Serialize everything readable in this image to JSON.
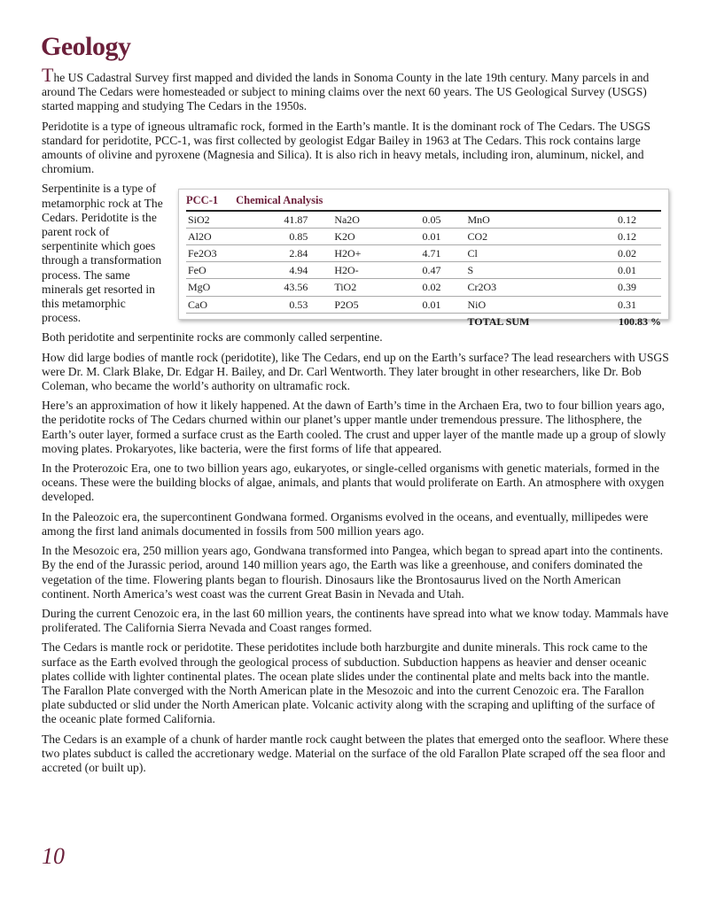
{
  "title": "Geology",
  "intro": {
    "dropcap": "T",
    "rest": "he US Cadastral Survey first mapped and divided the lands in Sonoma County in the late 19th century.  Many parcels in and around The Cedars were homesteaded or subject to mining claims over the next 60 years.  The US Geological Survey (USGS) started mapping and studying The Cedars in the 1950s."
  },
  "p_peridotite": "Peridotite is a type of igneous ultramafic rock, formed in the Earth’s mantle.  It is the dominant rock of The Cedars. The USGS standard for peridotite, PCC-1, was first collected by geologist Edgar Bailey in 1963 at The Cedars. This rock contains large amounts of olivine and pyroxene (Magnesia and Silica). It is also rich in heavy metals, including iron, aluminum, nickel, and chromium.",
  "sidebar": "Serpentinite is a type of metamorphic rock at The Cedars. Peridotite is the parent rock of serpentinite which goes through a transformation process. The same minerals get resorted in this metamorphic process.",
  "table": {
    "label": "PCC-1",
    "heading": "Chemical Analysis",
    "rows": [
      [
        "SiO2",
        "41.87",
        "Na2O",
        "0.05",
        "MnO",
        "0.12"
      ],
      [
        "Al2O",
        "0.85",
        "K2O",
        "0.01",
        "CO2",
        "0.12"
      ],
      [
        "Fe2O3",
        "2.84",
        "H2O+",
        "4.71",
        "Cl",
        "0.02"
      ],
      [
        "FeO",
        "4.94",
        "H2O-",
        "0.47",
        "S",
        "0.01"
      ],
      [
        "MgO",
        "43.56",
        "TiO2",
        "0.02",
        "Cr2O3",
        "0.39"
      ],
      [
        "CaO",
        "0.53",
        "P2O5",
        "0.01",
        "NiO",
        "0.31"
      ]
    ],
    "total_label": "TOTAL SUM",
    "total_value": "100.83 %"
  },
  "paragraphs": [
    "Both peridotite and serpentinite rocks are commonly called serpentine.",
    "How did large bodies of mantle rock (peridotite), like The Cedars, end up on the Earth’s surface? The lead researchers with USGS were Dr. M. Clark Blake, Dr. Edgar H. Bailey, and Dr. Carl Wentworth. They later brought in other researchers, like Dr. Bob Coleman, who became the world’s authority on ultramafic rock.",
    "Here’s an approximation of how it likely happened.  At the dawn of Earth’s time in the Archaen Era, two to four billion years ago, the peridotite rocks of The Cedars churned within our planet’s upper mantle under tremendous pressure. The lithosphere, the Earth’s outer layer, formed a surface crust as the Earth cooled. The crust and upper layer of the mantle made up a group of slowly moving plates. Prokaryotes, like bacteria, were the first forms of life that appeared.",
    "In the Proterozoic Era, one to two billion years ago, eukaryotes, or single-celled organisms with genetic materials, formed in the oceans. These were the building blocks of algae, animals, and plants that would proliferate on Earth. An atmosphere with oxygen developed.",
    "In the Paleozoic era, the supercontinent Gondwana formed. Organisms evolved in the oceans, and eventually, millipedes were among the first land animals documented in fossils from 500 million years ago.",
    "In the Mesozoic era, 250 million years ago, Gondwana transformed into Pangea, which began to spread apart into the continents. By the end of the Jurassic period, around 140 million years ago, the Earth was like a greenhouse, and conifers dominated the vegetation of the time. Flowering plants began to flourish. Dinosaurs like the Brontosaurus lived on the North American continent. North America’s west coast was the current Great Basin in Nevada and Utah.",
    "During the current Cenozoic era, in the last 60 million years, the continents have spread into what we know today. Mammals have proliferated. The California Sierra Nevada and Coast ranges formed.",
    "The Cedars is mantle rock or peridotite. These peridotites include both harzburgite and dunite minerals. This rock came to the surface as the Earth evolved through the geological process of subduction. Subduction happens as heavier and denser oceanic plates collide with lighter continental plates. The ocean plate slides under the continental plate and melts back into the mantle. The Farallon Plate converged with the North American plate in the Mesozoic and into the current Cenozoic era. The Farallon plate subducted or slid under the North American plate.  Volcanic activity along with the scraping and uplifting of the surface of the oceanic plate formed California.",
    "The Cedars is an example of a chunk of harder mantle rock caught between the plates that emerged onto the seafloor. Where these two plates subduct is called the accretionary wedge. Material on the surface of the old Farallon Plate scraped off the sea floor and accreted (or built up)."
  ],
  "page_number": "10",
  "colors": {
    "accent": "#6b1f3a"
  }
}
